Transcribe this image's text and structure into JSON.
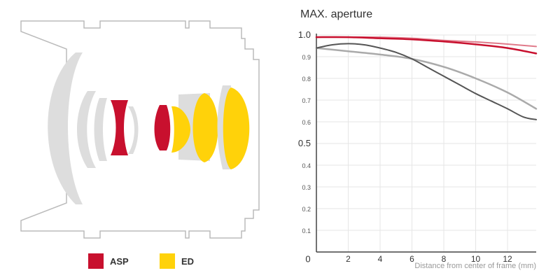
{
  "lens_diagram": {
    "colors": {
      "plain": "#dddddd",
      "asp": "#c8102e",
      "ed": "#ffd20a",
      "outline": "#bbbbbb"
    }
  },
  "legend": [
    {
      "label": "ASP",
      "color": "#c8102e"
    },
    {
      "label": "ED",
      "color": "#ffd20a"
    }
  ],
  "chart_data": {
    "type": "line",
    "title": "MAX. aperture",
    "xlabel": "Distance from center of frame (mm)",
    "ylabel": "",
    "xlim": [
      0,
      13.8
    ],
    "ylim": [
      0,
      1.0
    ],
    "x_ticks": [
      0,
      2,
      4,
      6,
      8,
      10,
      12
    ],
    "x_tick_labels": [
      "0",
      "2",
      "4",
      "6",
      "8",
      "10",
      "12"
    ],
    "y_ticks": [
      0.1,
      0.2,
      0.3,
      0.4,
      0.5,
      0.6,
      0.7,
      0.8,
      0.9,
      1.0
    ],
    "y_tick_labels": [
      "0.1",
      "0.2",
      "0.3",
      "0.4",
      "0.5",
      "0.6",
      "0.7",
      "0.8",
      "0.9",
      "1.0"
    ],
    "grid": true,
    "series": [
      {
        "color": "#e07a8a",
        "width": 2,
        "points": [
          [
            0,
            0.99
          ],
          [
            2,
            0.99
          ],
          [
            4,
            0.99
          ],
          [
            6,
            0.985
          ],
          [
            8,
            0.975
          ],
          [
            10,
            0.968
          ],
          [
            12,
            0.958
          ],
          [
            13.8,
            0.947
          ]
        ]
      },
      {
        "color": "#c8102e",
        "width": 2.5,
        "points": [
          [
            0,
            0.99
          ],
          [
            2,
            0.99
          ],
          [
            4,
            0.985
          ],
          [
            6,
            0.98
          ],
          [
            8,
            0.97
          ],
          [
            10,
            0.957
          ],
          [
            12,
            0.94
          ],
          [
            13.8,
            0.915
          ]
        ]
      },
      {
        "color": "#aaaaaa",
        "width": 2.5,
        "points": [
          [
            0,
            0.94
          ],
          [
            2,
            0.925
          ],
          [
            4,
            0.91
          ],
          [
            6,
            0.89
          ],
          [
            8,
            0.853
          ],
          [
            10,
            0.8
          ],
          [
            12,
            0.735
          ],
          [
            13.8,
            0.66
          ]
        ]
      },
      {
        "color": "#555555",
        "width": 2,
        "points": [
          [
            0,
            0.94
          ],
          [
            1,
            0.955
          ],
          [
            2,
            0.96
          ],
          [
            3,
            0.955
          ],
          [
            4,
            0.94
          ],
          [
            5,
            0.92
          ],
          [
            6,
            0.89
          ],
          [
            7,
            0.85
          ],
          [
            8,
            0.81
          ],
          [
            9,
            0.77
          ],
          [
            10,
            0.73
          ],
          [
            11,
            0.695
          ],
          [
            12,
            0.66
          ],
          [
            13,
            0.622
          ],
          [
            13.8,
            0.61
          ]
        ]
      }
    ]
  }
}
